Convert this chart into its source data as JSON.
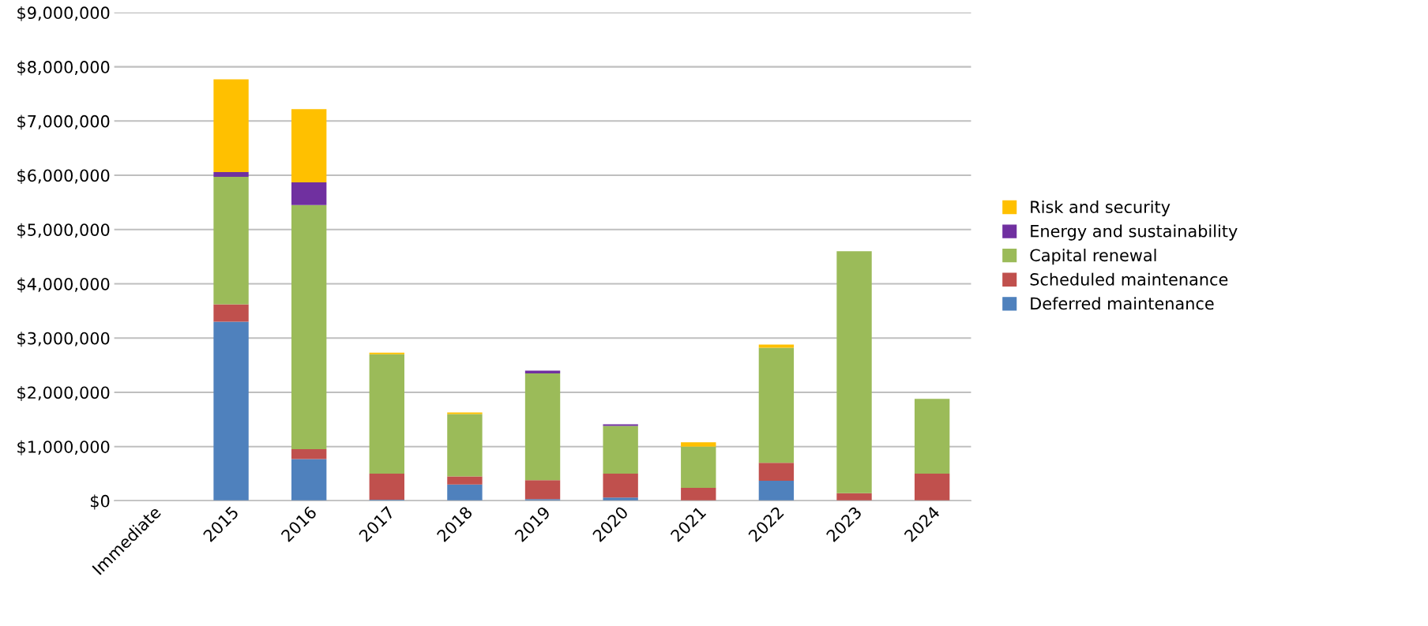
{
  "chart_data": {
    "type": "bar",
    "stacked": true,
    "categories": [
      "Immediate",
      "2015",
      "2016",
      "2017",
      "2018",
      "2019",
      "2020",
      "2021",
      "2022",
      "2023",
      "2024"
    ],
    "series": [
      {
        "name": "Deferred maintenance",
        "color": "#4f81bd",
        "values": [
          0,
          3300000,
          770000,
          20000,
          300000,
          30000,
          60000,
          0,
          370000,
          0,
          0
        ]
      },
      {
        "name": "Scheduled maintenance",
        "color": "#c0504d",
        "values": [
          0,
          320000,
          180000,
          480000,
          150000,
          350000,
          440000,
          240000,
          330000,
          140000,
          500000
        ]
      },
      {
        "name": "Capital renewal",
        "color": "#9bbb59",
        "values": [
          0,
          2350000,
          4500000,
          2200000,
          1150000,
          1970000,
          880000,
          760000,
          2120000,
          4460000,
          1380000
        ]
      },
      {
        "name": "Energy and sustainability",
        "color": "#7030a0",
        "values": [
          0,
          90000,
          420000,
          0,
          0,
          50000,
          30000,
          0,
          0,
          0,
          0
        ]
      },
      {
        "name": "Risk and security",
        "color": "#ffc000",
        "values": [
          0,
          1710000,
          1350000,
          30000,
          30000,
          0,
          0,
          80000,
          60000,
          0,
          0
        ]
      }
    ],
    "ylim": [
      0,
      9000000
    ],
    "yticks": [
      {
        "value": 0,
        "label": "$0"
      },
      {
        "value": 1000000,
        "label": "$1,000,000"
      },
      {
        "value": 2000000,
        "label": "$2,000,000"
      },
      {
        "value": 3000000,
        "label": "$3,000,000"
      },
      {
        "value": 4000000,
        "label": "$4,000,000"
      },
      {
        "value": 5000000,
        "label": "$5,000,000"
      },
      {
        "value": 6000000,
        "label": "$6,000,000"
      },
      {
        "value": 7000000,
        "label": "$7,000,000"
      },
      {
        "value": 8000000,
        "label": "$8,000,000"
      },
      {
        "value": 9000000,
        "label": "$9,000,000"
      }
    ],
    "grid": "y",
    "legend": "right"
  }
}
